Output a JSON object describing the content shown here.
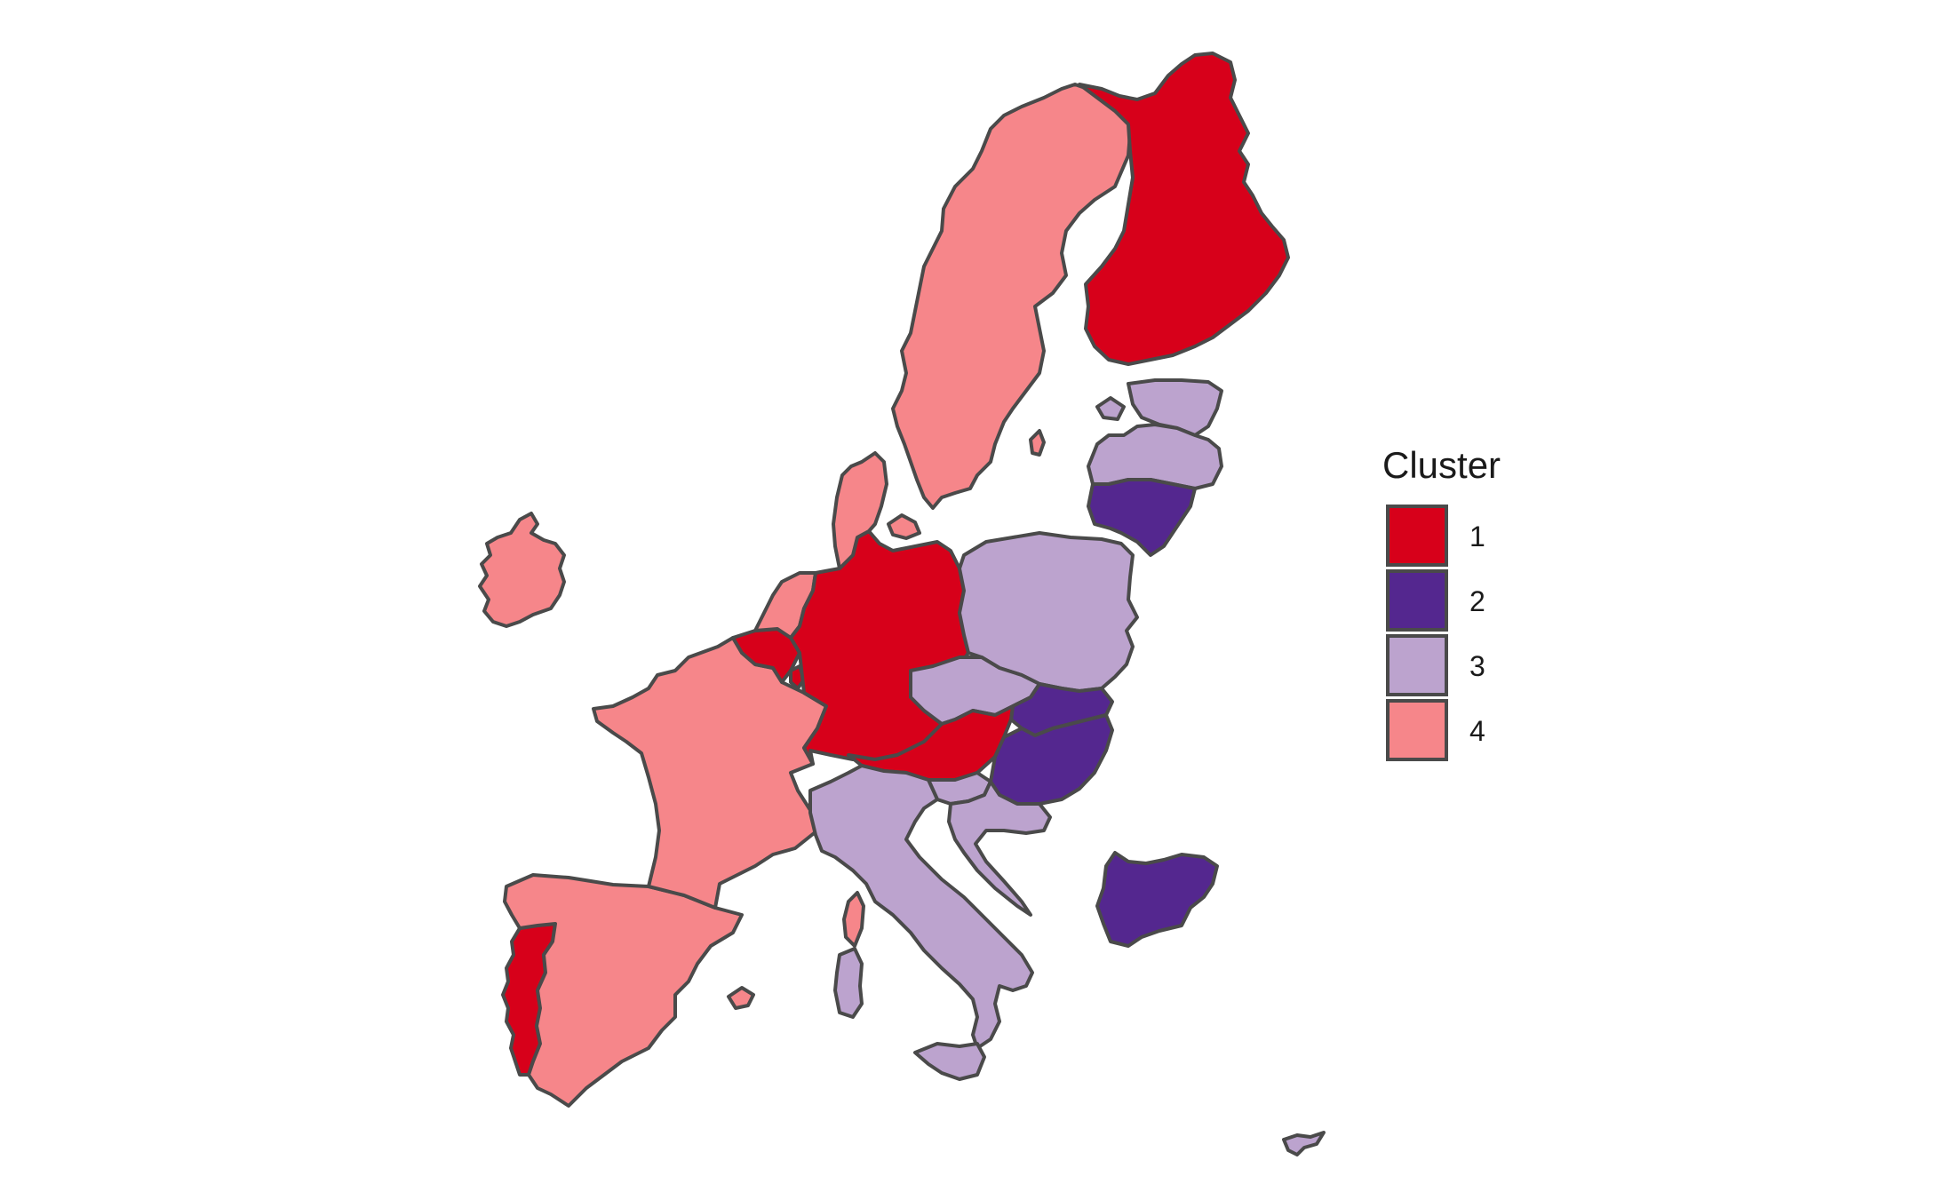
{
  "legend": {
    "title": "Cluster",
    "items": [
      {
        "label": "1",
        "color": "#D7001A"
      },
      {
        "label": "2",
        "color": "#54278F"
      },
      {
        "label": "3",
        "color": "#BCA3CE"
      },
      {
        "label": "4",
        "color": "#F6868A"
      }
    ]
  },
  "countries": [
    {
      "key": "ireland",
      "cluster": "4"
    },
    {
      "key": "portugal",
      "cluster": "1"
    },
    {
      "key": "spain",
      "cluster": "4"
    },
    {
      "key": "balearic-islands",
      "cluster": "4"
    },
    {
      "key": "france",
      "cluster": "4"
    },
    {
      "key": "corsica",
      "cluster": "4"
    },
    {
      "key": "belgium",
      "cluster": "1"
    },
    {
      "key": "luxembourg",
      "cluster": "1"
    },
    {
      "key": "netherlands",
      "cluster": "4"
    },
    {
      "key": "germany",
      "cluster": "1"
    },
    {
      "key": "denmark",
      "cluster": "4"
    },
    {
      "key": "sweden",
      "cluster": "4"
    },
    {
      "key": "gotland",
      "cluster": "4"
    },
    {
      "key": "finland",
      "cluster": "1"
    },
    {
      "key": "estonia",
      "cluster": "3"
    },
    {
      "key": "saaremaa",
      "cluster": "3"
    },
    {
      "key": "latvia",
      "cluster": "3"
    },
    {
      "key": "lithuania",
      "cluster": "2"
    },
    {
      "key": "poland",
      "cluster": "3"
    },
    {
      "key": "czechia",
      "cluster": "3"
    },
    {
      "key": "slovakia",
      "cluster": "2"
    },
    {
      "key": "austria",
      "cluster": "1"
    },
    {
      "key": "hungary",
      "cluster": "2"
    },
    {
      "key": "slovenia",
      "cluster": "3"
    },
    {
      "key": "croatia",
      "cluster": "3"
    },
    {
      "key": "italy",
      "cluster": "3"
    },
    {
      "key": "sardinia",
      "cluster": "3"
    },
    {
      "key": "sicily",
      "cluster": "3"
    },
    {
      "key": "bulgaria",
      "cluster": "2"
    },
    {
      "key": "cyprus",
      "cluster": "3"
    }
  ]
}
